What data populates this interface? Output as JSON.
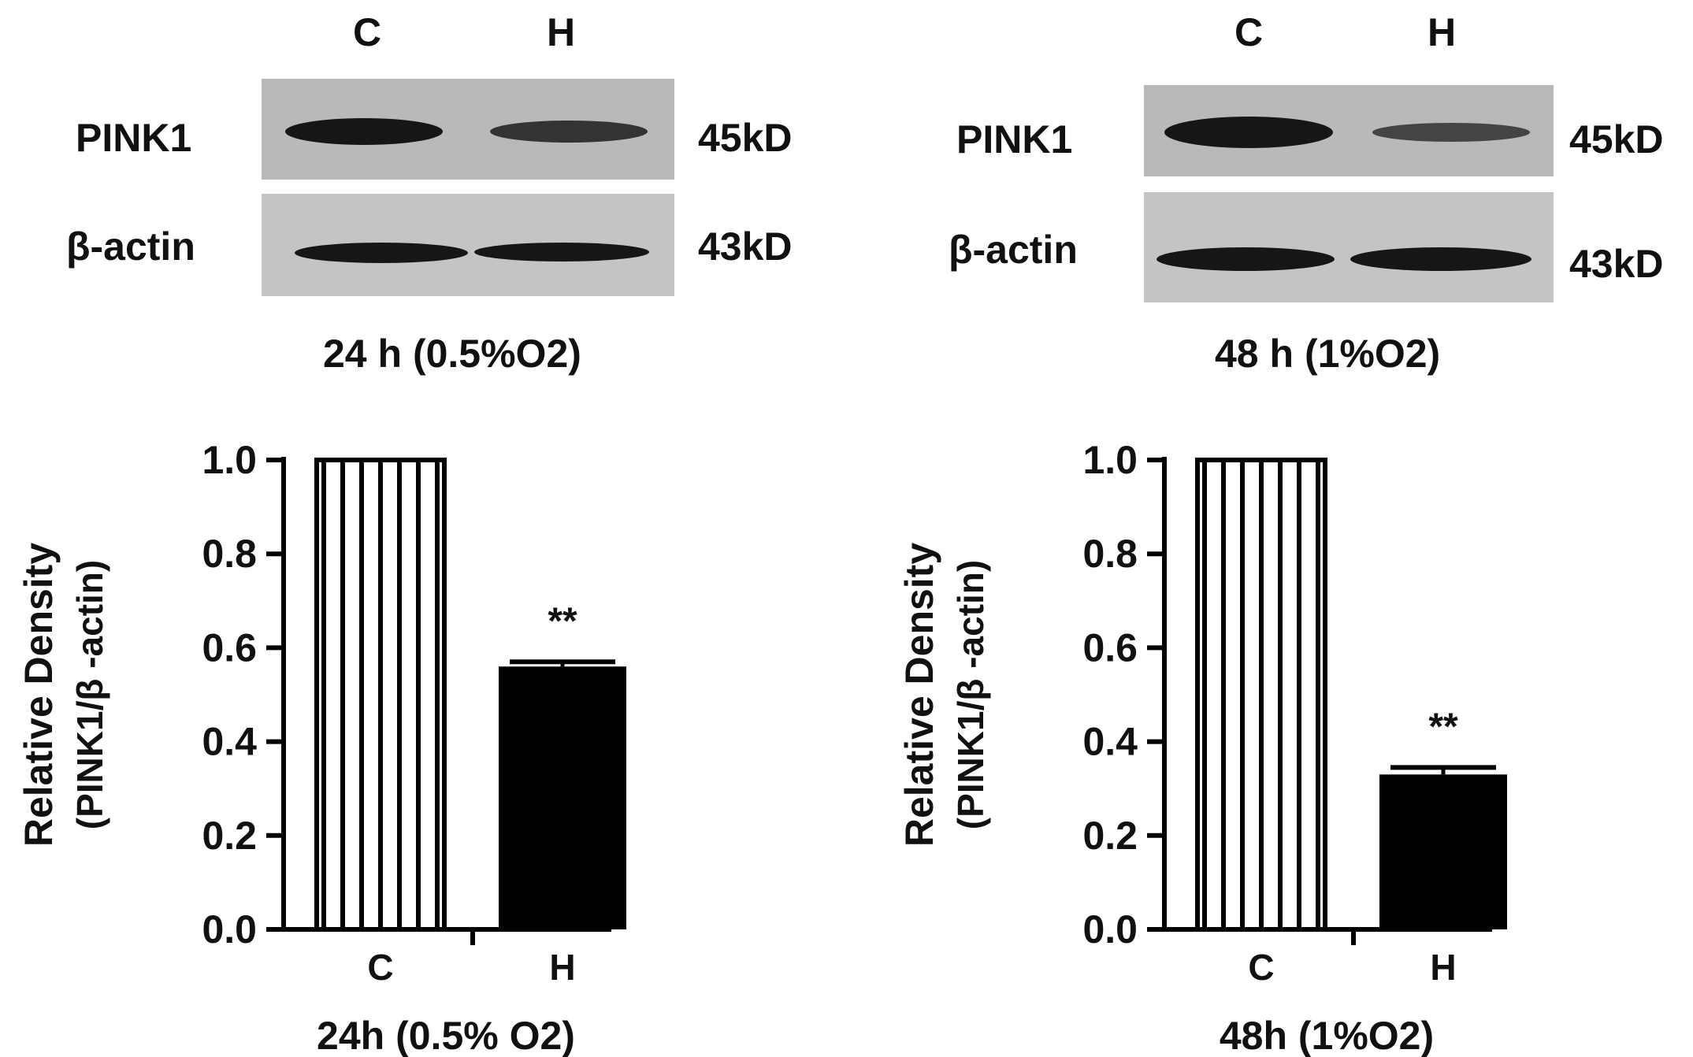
{
  "panels": [
    {
      "lanes": [
        "C",
        "H"
      ],
      "blots": [
        {
          "protein": "PINK1",
          "size": "45kD",
          "band_intensity": [
            1.0,
            0.6
          ]
        },
        {
          "protein": "β-actin",
          "size": "43kD",
          "band_intensity": [
            1.0,
            1.0
          ]
        }
      ],
      "condition": "24 h (0.5%O2)"
    },
    {
      "lanes": [
        "C",
        "H"
      ],
      "blots": [
        {
          "protein": "PINK1",
          "size": "45kD",
          "band_intensity": [
            1.0,
            0.45
          ]
        },
        {
          "protein": "β-actin",
          "size": "43kD",
          "band_intensity": [
            1.0,
            1.0
          ]
        }
      ],
      "condition": "48 h (1%O2)"
    }
  ],
  "chart_data": [
    {
      "type": "bar",
      "categories": [
        "C",
        "H"
      ],
      "values": [
        1.0,
        0.56
      ],
      "errors": [
        0,
        0.01
      ],
      "annotations": [
        "",
        "**"
      ],
      "bar_styles": [
        "vertical-stripes",
        "solid"
      ],
      "ylabel": "Relative Density",
      "ylabel2": "(PINK1/β -actin)",
      "xlabel": "24h (0.5% O2)",
      "ylim": [
        0,
        1.0
      ],
      "yticks": [
        "0.0",
        "0.2",
        "0.4",
        "0.6",
        "0.8",
        "1.0"
      ],
      "colors": {
        "bar_fill": "#000000",
        "stripe": "#000000",
        "background": "#ffffff"
      }
    },
    {
      "type": "bar",
      "categories": [
        "C",
        "H"
      ],
      "values": [
        1.0,
        0.33
      ],
      "errors": [
        0,
        0.015
      ],
      "annotations": [
        "",
        "**"
      ],
      "bar_styles": [
        "vertical-stripes",
        "solid"
      ],
      "ylabel": "Relative Density",
      "ylabel2": "(PINK1/β -actin)",
      "xlabel": "48h (1%O2)",
      "ylim": [
        0,
        1.0
      ],
      "yticks": [
        "0.0",
        "0.2",
        "0.4",
        "0.6",
        "0.8",
        "1.0"
      ],
      "colors": {
        "bar_fill": "#000000",
        "stripe": "#000000",
        "background": "#ffffff"
      }
    }
  ]
}
